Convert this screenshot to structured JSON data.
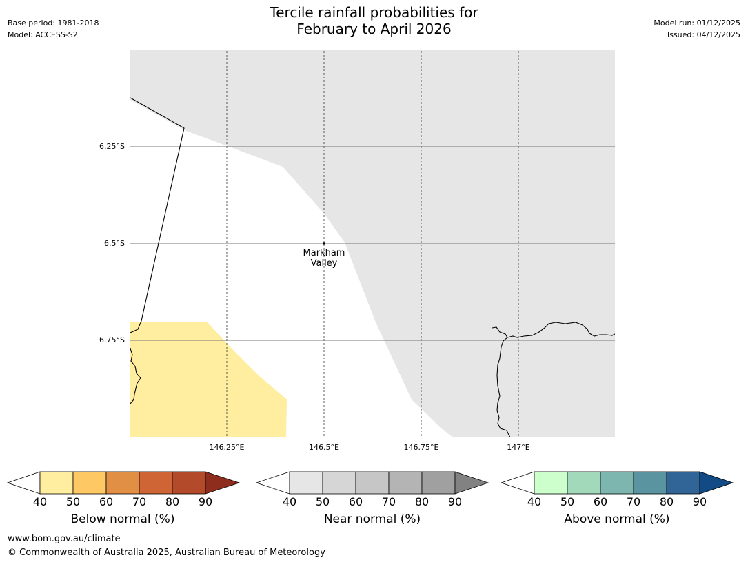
{
  "title": {
    "line1": "Tercile rainfall probabilities for",
    "line2": "February to April 2026"
  },
  "meta_left": {
    "base_period": "Base period: 1981-2018",
    "model": "Model: ACCESS-S2"
  },
  "meta_right": {
    "model_run": "Model run: 01/12/2025",
    "issued": "Issued: 04/12/2025"
  },
  "map": {
    "lat_labels": [
      "6.25°S",
      "6.5°S",
      "6.75°S"
    ],
    "lon_labels": [
      "146.25°E",
      "146.5°E",
      "146.75°E",
      "147°E"
    ],
    "place": {
      "line1": "Markham",
      "line2": "Valley"
    },
    "colors": {
      "near_normal_40_50": "#e6e6e6",
      "below_normal_40_50": "#ffeda0",
      "coast": "#000000"
    }
  },
  "colorbars": [
    {
      "label": "Below normal (%)",
      "ticks": [
        "40",
        "50",
        "60",
        "70",
        "80",
        "90"
      ],
      "colors": [
        "#ffeda0",
        "#fec965",
        "#e08f45",
        "#cf6535",
        "#b34a2a",
        "#8e2d1e"
      ]
    },
    {
      "label": "Near normal (%)",
      "ticks": [
        "40",
        "50",
        "60",
        "70",
        "80",
        "90"
      ],
      "colors": [
        "#e6e6e6",
        "#d6d6d6",
        "#c6c6c6",
        "#b4b4b4",
        "#a0a0a0",
        "#828282"
      ]
    },
    {
      "label": "Above normal (%)",
      "ticks": [
        "40",
        "50",
        "60",
        "70",
        "80",
        "90"
      ],
      "colors": [
        "#ccffcc",
        "#a3d9bb",
        "#7db6ae",
        "#5a94a0",
        "#316598",
        "#124a85"
      ]
    }
  ],
  "footer": {
    "url": "www.bom.gov.au/climate",
    "copyright": "© Commonwealth of Australia 2025, Australian Bureau of Meteorology"
  }
}
